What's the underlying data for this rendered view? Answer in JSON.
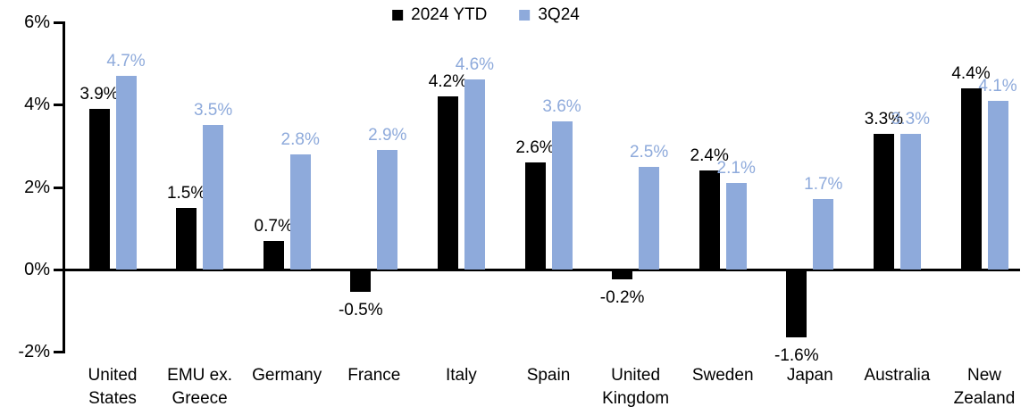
{
  "chart_data": {
    "type": "bar",
    "title": "",
    "categories": [
      "United States",
      "EMU ex. Greece",
      "Germany",
      "France",
      "Italy",
      "Spain",
      "United Kingdom",
      "Sweden",
      "Japan",
      "Australia",
      "New Zealand"
    ],
    "series": [
      {
        "name": "2024 YTD",
        "color": "#000000",
        "values": [
          3.9,
          1.5,
          0.7,
          -0.5,
          4.2,
          2.6,
          -0.2,
          2.4,
          -1.6,
          3.3,
          4.4
        ]
      },
      {
        "name": "3Q24",
        "color": "#8EAADB",
        "values": [
          4.7,
          3.5,
          2.8,
          2.9,
          4.6,
          3.6,
          2.5,
          2.1,
          1.7,
          3.3,
          4.1
        ]
      }
    ],
    "ylim": [
      -2,
      6
    ],
    "ytick_values": [
      6,
      4,
      2,
      0,
      -2
    ],
    "yticks": [
      "6%",
      "4%",
      "2%",
      "0%",
      "-2%"
    ],
    "data_label_format": "one_decimal_percent",
    "legend_position": "top-center",
    "grid": false,
    "colors": {
      "series_2024_ytd": "#000000",
      "series_3q24": "#8EAADB",
      "axis": "#000000"
    }
  }
}
